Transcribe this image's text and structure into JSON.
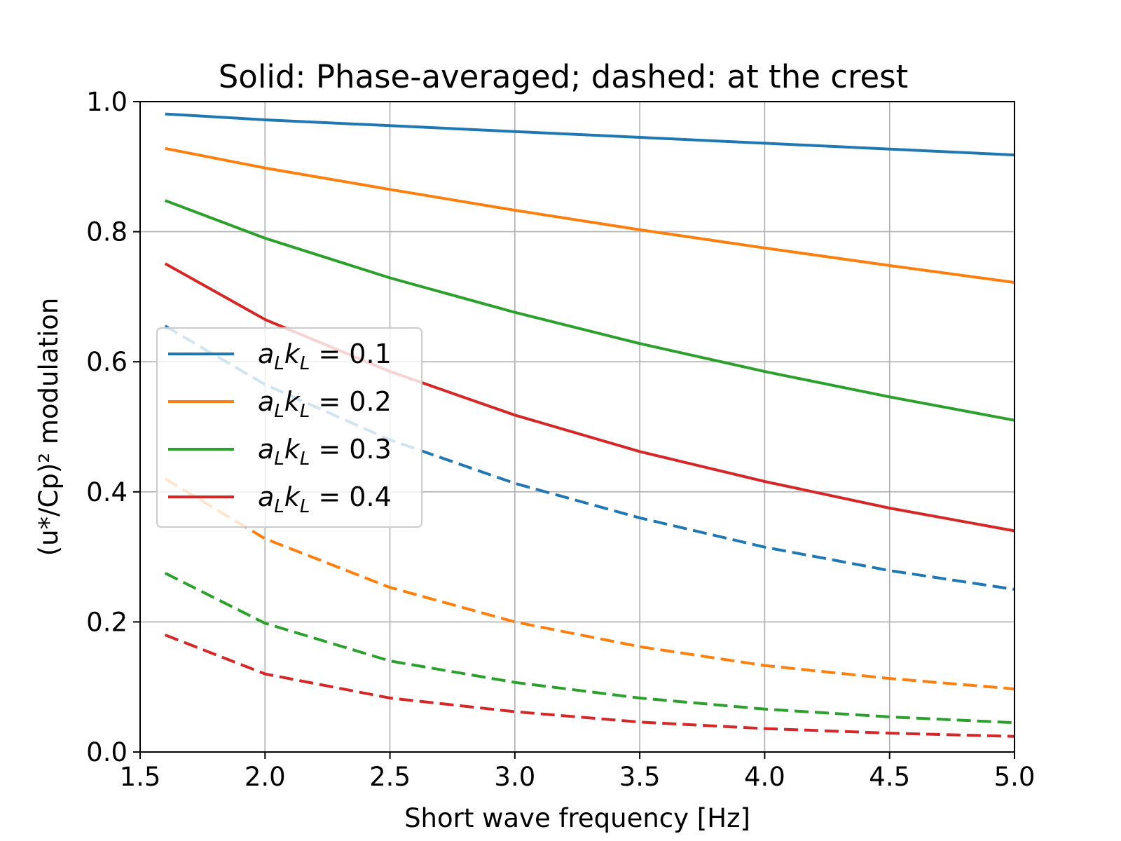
{
  "chart_data": {
    "type": "line",
    "title": "Solid: Phase-averaged; dashed: at the crest",
    "xlabel": "Short wave frequency [Hz]",
    "ylabel": "(u*/Cp)² modulation",
    "xlim": [
      1.5,
      5.0
    ],
    "ylim": [
      0.0,
      1.0
    ],
    "xticks": [
      "1.5",
      "2.0",
      "2.5",
      "3.0",
      "3.5",
      "4.0",
      "4.5",
      "5.0"
    ],
    "yticks": [
      "0.0",
      "0.2",
      "0.4",
      "0.6",
      "0.8",
      "1.0"
    ],
    "grid": true,
    "legend_position": "center-left",
    "x": [
      1.6,
      2.0,
      2.5,
      3.0,
      3.5,
      4.0,
      4.5,
      5.0
    ],
    "series": [
      {
        "name": "a_L k_L = 0.1",
        "legend": {
          "a": "a",
          "L1": "L",
          "k": "k",
          "L2": "L",
          "eq": " = 0.1"
        },
        "color": "#1f77b4",
        "style": "solid",
        "values": [
          0.981,
          0.972,
          0.963,
          0.954,
          0.945,
          0.936,
          0.927,
          0.918
        ]
      },
      {
        "name": "a_L k_L = 0.2",
        "legend": {
          "a": "a",
          "L1": "L",
          "k": "k",
          "L2": "L",
          "eq": " = 0.2"
        },
        "color": "#ff7f0e",
        "style": "solid",
        "values": [
          0.928,
          0.898,
          0.865,
          0.833,
          0.803,
          0.775,
          0.748,
          0.722
        ]
      },
      {
        "name": "a_L k_L = 0.3",
        "legend": {
          "a": "a",
          "L1": "L",
          "k": "k",
          "L2": "L",
          "eq": " = 0.3"
        },
        "color": "#2ca02c",
        "style": "solid",
        "values": [
          0.848,
          0.79,
          0.729,
          0.676,
          0.628,
          0.585,
          0.546,
          0.51
        ]
      },
      {
        "name": "a_L k_L = 0.4",
        "legend": {
          "a": "a",
          "L1": "L",
          "k": "k",
          "L2": "L",
          "eq": " = 0.4"
        },
        "color": "#d62728",
        "style": "solid",
        "values": [
          0.751,
          0.665,
          0.585,
          0.518,
          0.462,
          0.416,
          0.375,
          0.34
        ]
      },
      {
        "name": "",
        "color": "#1f77b4",
        "style": "dashed",
        "values": [
          0.655,
          0.565,
          0.48,
          0.413,
          0.36,
          0.315,
          0.279,
          0.25
        ]
      },
      {
        "name": "",
        "color": "#ff7f0e",
        "style": "dashed",
        "values": [
          0.42,
          0.328,
          0.253,
          0.2,
          0.162,
          0.133,
          0.113,
          0.097
        ]
      },
      {
        "name": "",
        "color": "#2ca02c",
        "style": "dashed",
        "values": [
          0.275,
          0.198,
          0.14,
          0.107,
          0.083,
          0.066,
          0.054,
          0.045
        ]
      },
      {
        "name": "",
        "color": "#d62728",
        "style": "dashed",
        "values": [
          0.18,
          0.12,
          0.083,
          0.062,
          0.046,
          0.036,
          0.029,
          0.024
        ]
      }
    ]
  }
}
